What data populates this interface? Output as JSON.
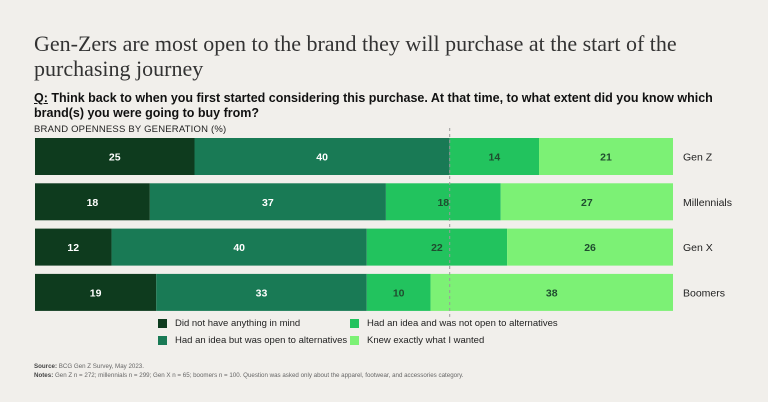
{
  "title": "Gen-Zers are most open to the brand they will purchase at the start of the purchasing journey",
  "question": {
    "prefix": "Q:",
    "text": " Think back to when you first started considering this purchase. At that time, to what extent did you know which brand(s) you were going to buy from?"
  },
  "subtitle": "BRAND OPENNESS BY GENERATION (%)",
  "chart_data": {
    "type": "bar",
    "orientation": "horizontal",
    "stacked": true,
    "categories": [
      "Gen Z",
      "Millennials",
      "Gen X",
      "Boomers"
    ],
    "series": [
      {
        "name": "Did not have anything in mind",
        "color": "#0e3b1e",
        "values": [
          25,
          18,
          12,
          19
        ]
      },
      {
        "name": "Had an idea but was open to alternatives",
        "color": "#197a55",
        "values": [
          40,
          37,
          40,
          33
        ]
      },
      {
        "name": "Had an idea and was not open to alternatives",
        "color": "#22c35e",
        "values": [
          14,
          18,
          22,
          10
        ]
      },
      {
        "name": "Knew exactly what I wanted",
        "color": "#7cf175",
        "values": [
          21,
          27,
          26,
          38
        ]
      }
    ],
    "xlim": [
      0,
      100
    ],
    "reference_line": {
      "value": 65,
      "style": "dashed"
    }
  },
  "legend": [
    {
      "label": "Did not have anything in mind",
      "color": "#0e3b1e"
    },
    {
      "label": "Had an idea and was not open to alternatives",
      "color": "#22c35e"
    },
    {
      "label": "Had an idea but was open to alternatives",
      "color": "#197a55"
    },
    {
      "label": "Knew exactly what I wanted",
      "color": "#7cf175"
    }
  ],
  "footer": {
    "source_label": "Source:",
    "source_text": " BCG Gen Z Survey, May 2023.",
    "notes_label": "Notes:",
    "notes_text": " Gen Z n = 272; millennials n = 299; Gen X n = 65; boomers n = 100. Question was asked only about the apparel, footwear, and accessories category."
  }
}
